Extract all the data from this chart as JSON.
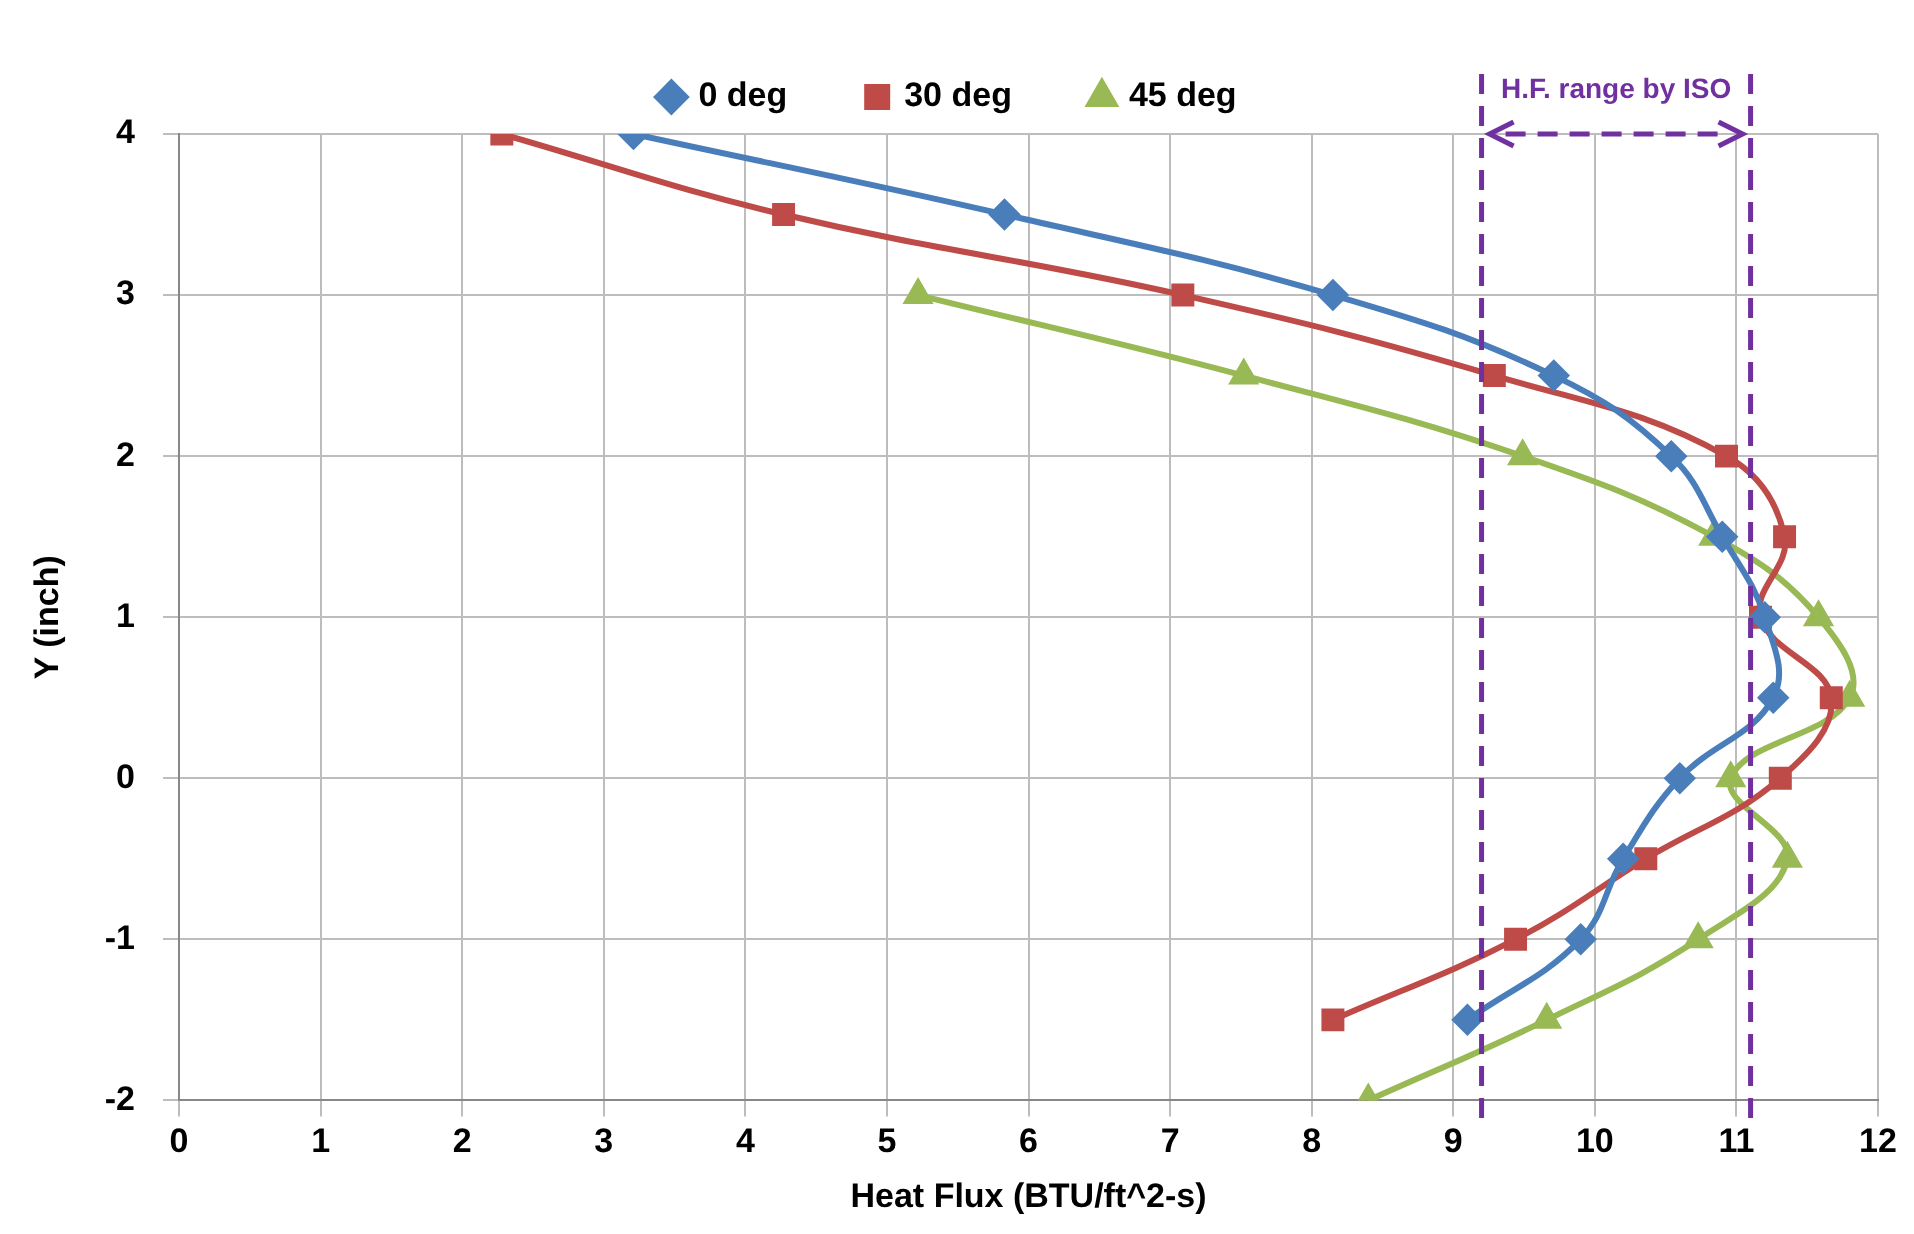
{
  "chart_data": {
    "type": "line",
    "xlabel": "Heat Flux (BTU/ft^2-s)",
    "ylabel": "Y (inch)",
    "xlim": [
      0,
      12
    ],
    "xticks": [
      0,
      1,
      2,
      3,
      4,
      5,
      6,
      7,
      8,
      9,
      10,
      11,
      12
    ],
    "ylim": [
      -2,
      4
    ],
    "yticks": [
      -2,
      -1,
      0,
      1,
      2,
      3,
      4
    ],
    "grid": true,
    "legend": "top",
    "line_style": "solid",
    "series": [
      {
        "name": "0 deg",
        "color": "#4a7ebb",
        "marker": "diamond",
        "x": [
          3.21,
          5.83,
          8.15,
          9.71,
          10.54,
          10.9,
          11.2,
          11.26,
          10.6,
          10.2,
          9.9,
          9.1
        ],
        "values": [
          4,
          3.5,
          3,
          2.5,
          2,
          1.5,
          1,
          0.5,
          0,
          -0.5,
          -1,
          -1.5
        ]
      },
      {
        "name": "30 deg",
        "color": "#be4b48",
        "marker": "square",
        "x": [
          2.28,
          4.27,
          7.09,
          9.29,
          10.93,
          11.34,
          11.17,
          11.67,
          11.31,
          10.36,
          9.44,
          8.15
        ],
        "values": [
          4,
          3.5,
          3,
          2.5,
          2,
          1.5,
          1,
          0.5,
          0,
          -0.5,
          -1,
          -1.5
        ]
      },
      {
        "name": "45 deg",
        "color": "#98b954",
        "marker": "triangle",
        "x": [
          5.22,
          7.52,
          9.49,
          10.84,
          11.58,
          11.8,
          10.96,
          11.36,
          10.73,
          9.66,
          8.4
        ],
        "values": [
          3,
          2.5,
          2,
          1.5,
          1,
          0.5,
          0,
          -0.5,
          -1,
          -1.5,
          -2
        ]
      }
    ],
    "ref_lines": [
      {
        "axis": "x",
        "value": 9.2,
        "color": "#7030a0",
        "line_style": "dashed"
      },
      {
        "axis": "x",
        "value": 11.1,
        "color": "#7030a0",
        "line_style": "dashed"
      }
    ],
    "annotations": [
      "H.F. range by ISO"
    ]
  }
}
